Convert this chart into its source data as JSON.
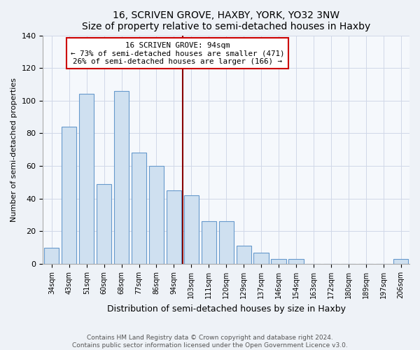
{
  "title": "16, SCRIVEN GROVE, HAXBY, YORK, YO32 3NW",
  "subtitle": "Size of property relative to semi-detached houses in Haxby",
  "xlabel": "Distribution of semi-detached houses by size in Haxby",
  "ylabel": "Number of semi-detached properties",
  "bar_labels": [
    "34sqm",
    "43sqm",
    "51sqm",
    "60sqm",
    "68sqm",
    "77sqm",
    "86sqm",
    "94sqm",
    "103sqm",
    "111sqm",
    "120sqm",
    "129sqm",
    "137sqm",
    "146sqm",
    "154sqm",
    "163sqm",
    "172sqm",
    "180sqm",
    "189sqm",
    "197sqm",
    "206sqm"
  ],
  "bar_values": [
    10,
    84,
    104,
    49,
    106,
    68,
    60,
    45,
    42,
    26,
    26,
    11,
    7,
    3,
    3,
    0,
    0,
    0,
    0,
    0,
    3
  ],
  "bar_color": "#cfe0f0",
  "bar_edge_color": "#6699cc",
  "vline_after_index": 7,
  "annotation_line1": "16 SCRIVEN GROVE: 94sqm",
  "annotation_line2": "← 73% of semi-detached houses are smaller (471)",
  "annotation_line3": "26% of semi-detached houses are larger (166) →",
  "vline_color": "#880000",
  "annotation_box_edge_color": "#cc0000",
  "ylim": [
    0,
    140
  ],
  "yticks": [
    0,
    20,
    40,
    60,
    80,
    100,
    120,
    140
  ],
  "footer_line1": "Contains HM Land Registry data © Crown copyright and database right 2024.",
  "footer_line2": "Contains public sector information licensed under the Open Government Licence v3.0.",
  "bg_color": "#eef2f7",
  "plot_bg_color": "#f5f8fc",
  "grid_color": "#d0d8e8"
}
